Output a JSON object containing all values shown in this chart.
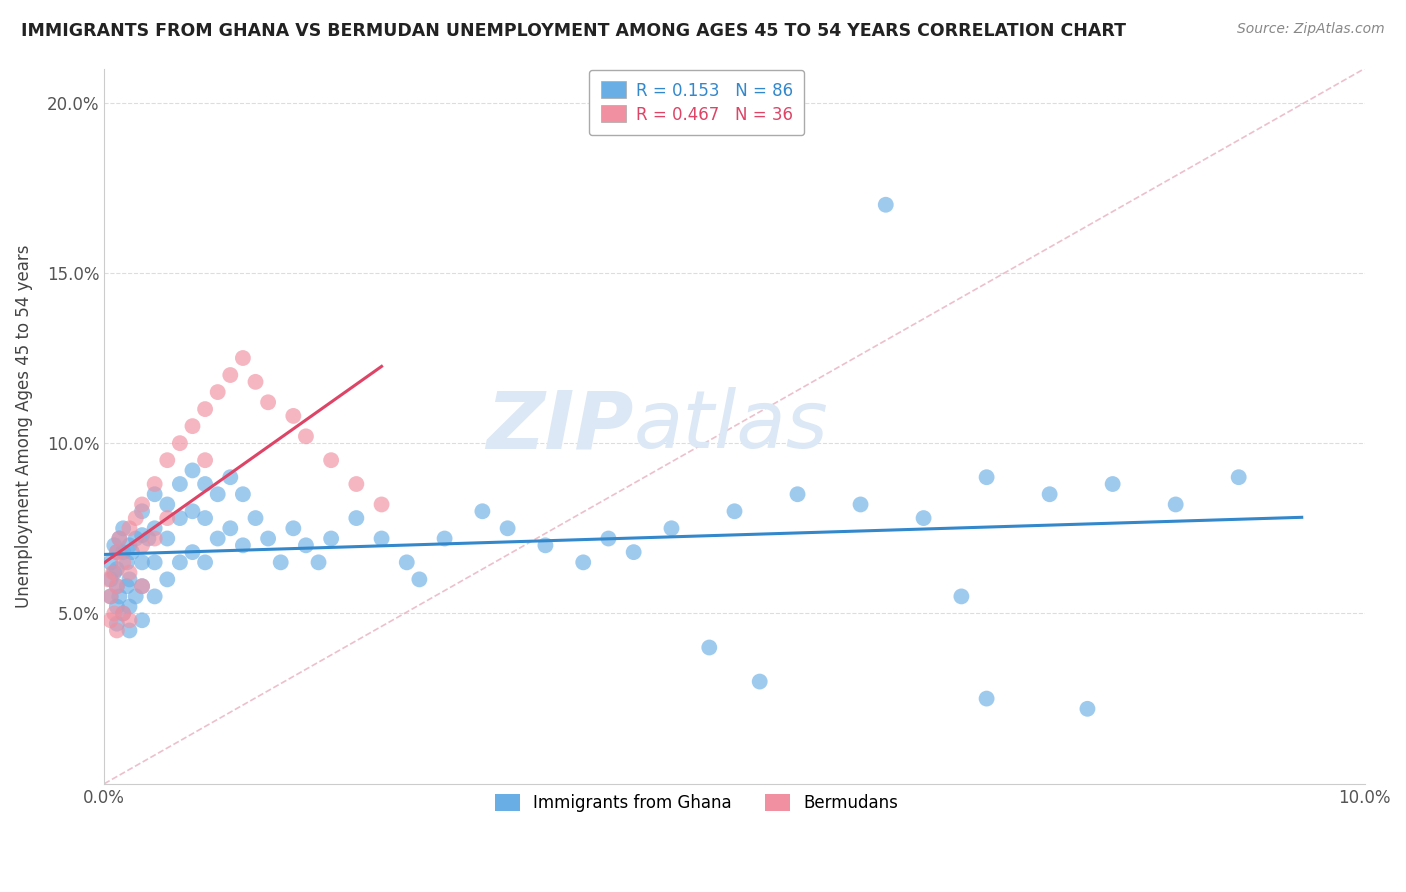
{
  "title": "IMMIGRANTS FROM GHANA VS BERMUDAN UNEMPLOYMENT AMONG AGES 45 TO 54 YEARS CORRELATION CHART",
  "source": "Source: ZipAtlas.com",
  "ylabel": "Unemployment Among Ages 45 to 54 years",
  "xlim": [
    0.0,
    0.1
  ],
  "ylim": [
    0.0,
    0.21
  ],
  "ghana_R": 0.153,
  "ghana_N": 86,
  "bermuda_R": 0.467,
  "bermuda_N": 36,
  "ghana_color": "#6aaee6",
  "bermuda_color": "#f090a0",
  "ghana_line_color": "#3388cc",
  "bermuda_line_color": "#dd4466",
  "legend_label_ghana": "Immigrants from Ghana",
  "legend_label_bermuda": "Bermudans",
  "watermark_part1": "ZIP",
  "watermark_part2": "atlas",
  "ghana_x": [
    0.0005,
    0.0005,
    0.0005,
    0.0008,
    0.0008,
    0.001,
    0.001,
    0.001,
    0.001,
    0.001,
    0.0012,
    0.0012,
    0.0015,
    0.0015,
    0.0015,
    0.0018,
    0.0018,
    0.002,
    0.002,
    0.002,
    0.002,
    0.0022,
    0.0025,
    0.0025,
    0.003,
    0.003,
    0.003,
    0.003,
    0.003,
    0.0035,
    0.004,
    0.004,
    0.004,
    0.004,
    0.005,
    0.005,
    0.005,
    0.006,
    0.006,
    0.006,
    0.007,
    0.007,
    0.007,
    0.008,
    0.008,
    0.008,
    0.009,
    0.009,
    0.01,
    0.01,
    0.011,
    0.011,
    0.012,
    0.013,
    0.014,
    0.015,
    0.016,
    0.017,
    0.018,
    0.02,
    0.022,
    0.024,
    0.025,
    0.027,
    0.03,
    0.032,
    0.035,
    0.038,
    0.04,
    0.042,
    0.045,
    0.05,
    0.055,
    0.06,
    0.065,
    0.07,
    0.075,
    0.08,
    0.085,
    0.09,
    0.048,
    0.052,
    0.07,
    0.078,
    0.068,
    0.062
  ],
  "ghana_y": [
    0.065,
    0.06,
    0.055,
    0.07,
    0.062,
    0.068,
    0.063,
    0.058,
    0.052,
    0.047,
    0.072,
    0.055,
    0.075,
    0.068,
    0.05,
    0.065,
    0.058,
    0.07,
    0.06,
    0.052,
    0.045,
    0.068,
    0.072,
    0.055,
    0.08,
    0.073,
    0.065,
    0.058,
    0.048,
    0.072,
    0.085,
    0.075,
    0.065,
    0.055,
    0.082,
    0.072,
    0.06,
    0.088,
    0.078,
    0.065,
    0.092,
    0.08,
    0.068,
    0.088,
    0.078,
    0.065,
    0.085,
    0.072,
    0.09,
    0.075,
    0.085,
    0.07,
    0.078,
    0.072,
    0.065,
    0.075,
    0.07,
    0.065,
    0.072,
    0.078,
    0.072,
    0.065,
    0.06,
    0.072,
    0.08,
    0.075,
    0.07,
    0.065,
    0.072,
    0.068,
    0.075,
    0.08,
    0.085,
    0.082,
    0.078,
    0.09,
    0.085,
    0.088,
    0.082,
    0.09,
    0.04,
    0.03,
    0.025,
    0.022,
    0.055,
    0.17
  ],
  "bermuda_x": [
    0.0003,
    0.0005,
    0.0005,
    0.0007,
    0.0008,
    0.001,
    0.001,
    0.001,
    0.0012,
    0.0015,
    0.0015,
    0.002,
    0.002,
    0.002,
    0.0025,
    0.003,
    0.003,
    0.003,
    0.004,
    0.004,
    0.005,
    0.005,
    0.006,
    0.007,
    0.008,
    0.008,
    0.009,
    0.01,
    0.011,
    0.012,
    0.013,
    0.015,
    0.016,
    0.018,
    0.02,
    0.022
  ],
  "bermuda_y": [
    0.06,
    0.055,
    0.048,
    0.062,
    0.05,
    0.068,
    0.058,
    0.045,
    0.072,
    0.065,
    0.05,
    0.075,
    0.062,
    0.048,
    0.078,
    0.082,
    0.07,
    0.058,
    0.088,
    0.072,
    0.095,
    0.078,
    0.1,
    0.105,
    0.11,
    0.095,
    0.115,
    0.12,
    0.125,
    0.118,
    0.112,
    0.108,
    0.102,
    0.095,
    0.088,
    0.082
  ]
}
